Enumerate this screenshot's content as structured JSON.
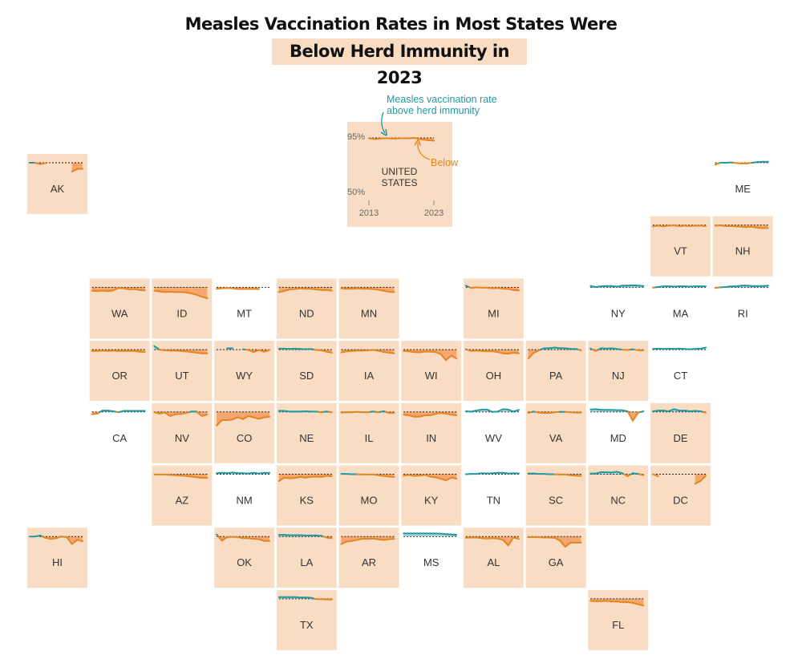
{
  "title": {
    "line1": "Measles Vaccination Rates in Most States Were",
    "line2": "Below Herd Immunity in 2023"
  },
  "colors": {
    "above": "#21999e",
    "below": "#e5851f",
    "below_fill": "#f2a36a",
    "above_fill": "#a9d7d6",
    "tile_below": "#f9dcc4",
    "threshold": "#222222"
  },
  "chart_data": {
    "type": "line",
    "title": "Measles Vaccination Rates in Most States Were Below Herd Immunity in 2023",
    "x": [
      2013,
      2014,
      2015,
      2016,
      2017,
      2018,
      2019,
      2020,
      2021,
      2022,
      2023
    ],
    "threshold": 95,
    "ylim": [
      50,
      100
    ],
    "legend": {
      "above_label": "Measles vaccination rate above herd immunity",
      "below_label": "Below"
    },
    "national": {
      "label_line1": "UNITED",
      "label_line2": "STATES",
      "y_tick_top": "95%",
      "y_tick_bottom": "50%",
      "x_tick_start": "2013",
      "x_tick_end": "2023",
      "values": [
        94.7,
        94.0,
        94.6,
        94.7,
        94.3,
        94.7,
        94.7,
        95.0,
        93.9,
        93.1,
        92.7
      ]
    },
    "states": [
      {
        "abbr": "AK",
        "col": 0,
        "row": 0,
        "below2023": true,
        "values": [
          95.0,
          95.0,
          93.0,
          94.5,
          null,
          null,
          null,
          null,
          82.0,
          86.0,
          86.0
        ]
      },
      {
        "abbr": "ME",
        "col": 11,
        "row": 0,
        "below2023": false,
        "values": [
          92.0,
          95.0,
          95.0,
          95.5,
          94.5,
          94.0,
          94.0,
          95.0,
          96.0,
          96.5,
          96.5
        ]
      },
      {
        "abbr": "VT",
        "col": 10,
        "row": 1,
        "below2023": true,
        "values": [
          93.0,
          94.0,
          93.0,
          94.0,
          94.5,
          93.5,
          94.0,
          93.5,
          94.0,
          94.0,
          93.5
        ]
      },
      {
        "abbr": "NH",
        "col": 11,
        "row": 1,
        "below2023": true,
        "values": [
          94.0,
          94.5,
          93.5,
          93.5,
          93.0,
          92.5,
          92.0,
          92.5,
          91.0,
          90.5,
          90.5
        ]
      },
      {
        "abbr": "WA",
        "col": 1,
        "row": 2,
        "below2023": true,
        "values": [
          90.0,
          89.5,
          90.0,
          89.5,
          90.5,
          94.0,
          93.5,
          92.0,
          92.5,
          91.0,
          90.5
        ]
      },
      {
        "abbr": "ID",
        "col": 2,
        "row": 2,
        "below2023": true,
        "values": [
          90.0,
          89.0,
          88.0,
          88.5,
          88.0,
          88.0,
          87.5,
          86.0,
          84.0,
          81.0,
          79.0
        ]
      },
      {
        "abbr": "MT",
        "col": 3,
        "row": 2,
        "below2023": false,
        "values": [
          93.0,
          93.5,
          94.0,
          93.5,
          92.5,
          92.5,
          92.5,
          92.5,
          92.5,
          null,
          null
        ]
      },
      {
        "abbr": "ND",
        "col": 4,
        "row": 2,
        "below2023": true,
        "values": [
          88.0,
          89.5,
          92.0,
          92.5,
          93.5,
          93.0,
          93.0,
          92.0,
          91.0,
          91.0,
          90.0
        ]
      },
      {
        "abbr": "MN",
        "col": 5,
        "row": 2,
        "below2023": true,
        "values": [
          93.5,
          93.0,
          93.0,
          93.5,
          93.0,
          93.0,
          92.5,
          91.5,
          90.0,
          88.5,
          88.0
        ]
      },
      {
        "abbr": "MI",
        "col": 7,
        "row": 2,
        "below2023": true,
        "values": [
          97.5,
          94.0,
          95.0,
          94.5,
          94.5,
          93.5,
          94.0,
          93.0,
          92.5,
          91.0,
          90.5
        ]
      },
      {
        "abbr": "NY",
        "col": 9,
        "row": 2,
        "below2023": false,
        "values": [
          97.0,
          95.5,
          96.5,
          97.0,
          97.0,
          96.0,
          97.5,
          97.5,
          98.0,
          97.5,
          97.0
        ]
      },
      {
        "abbr": "MA",
        "col": 10,
        "row": 2,
        "below2023": false,
        "values": [
          94.5,
          95.5,
          96.5,
          96.5,
          96.0,
          96.5,
          96.5,
          96.0,
          96.5,
          96.5,
          96.5
        ]
      },
      {
        "abbr": "RI",
        "col": 11,
        "row": 2,
        "below2023": false,
        "values": [
          94.0,
          95.0,
          95.5,
          96.5,
          96.5,
          97.5,
          97.5,
          97.0,
          97.0,
          97.0,
          97.5
        ]
      },
      {
        "abbr": "OR",
        "col": 1,
        "row": 3,
        "below2023": true,
        "values": [
          93.0,
          93.0,
          93.5,
          93.0,
          93.5,
          93.0,
          93.0,
          93.0,
          93.0,
          92.0,
          91.5
        ]
      },
      {
        "abbr": "UT",
        "col": 2,
        "row": 3,
        "below2023": true,
        "values": [
          100.0,
          95.0,
          94.0,
          93.5,
          93.5,
          93.0,
          92.5,
          91.5,
          90.5,
          89.5,
          89.5
        ]
      },
      {
        "abbr": "WY",
        "col": 3,
        "row": 3,
        "below2023": true,
        "values": [
          null,
          null,
          97.0,
          97.0,
          null,
          95.5,
          94.5,
          91.5,
          94.5,
          92.0,
          94.5
        ]
      },
      {
        "abbr": "SD",
        "col": 4,
        "row": 3,
        "below2023": true,
        "values": [
          96.5,
          96.5,
          96.0,
          96.5,
          96.0,
          95.5,
          96.0,
          94.5,
          94.0,
          92.0,
          90.5
        ]
      },
      {
        "abbr": "IA",
        "col": 5,
        "row": 3,
        "below2023": true,
        "values": [
          91.0,
          92.5,
          93.0,
          93.5,
          93.5,
          94.0,
          94.5,
          93.5,
          91.5,
          90.5,
          89.5
        ]
      },
      {
        "abbr": "WI",
        "col": 6,
        "row": 3,
        "below2023": true,
        "values": [
          93.0,
          92.5,
          91.5,
          91.0,
          92.0,
          92.0,
          91.5,
          88.5,
          79.5,
          86.0,
          82.0
        ]
      },
      {
        "abbr": "OH",
        "col": 7,
        "row": 3,
        "below2023": true,
        "values": [
          95.5,
          93.0,
          93.5,
          93.0,
          92.5,
          92.5,
          91.5,
          89.5,
          89.0,
          90.5,
          89.5
        ]
      },
      {
        "abbr": "PA",
        "col": 8,
        "row": 3,
        "below2023": true,
        "values": [
          82.0,
          90.0,
          94.0,
          97.0,
          97.0,
          98.0,
          97.0,
          97.0,
          96.0,
          96.0,
          94.0
        ]
      },
      {
        "abbr": "NJ",
        "col": 9,
        "row": 3,
        "below2023": true,
        "values": [
          96.5,
          93.0,
          97.0,
          96.5,
          97.0,
          96.0,
          95.0,
          94.5,
          95.5,
          94.0,
          94.0
        ]
      },
      {
        "abbr": "CT",
        "col": 10,
        "row": 3,
        "below2023": false,
        "values": [
          96.0,
          96.5,
          96.0,
          96.5,
          96.0,
          96.5,
          96.0,
          95.5,
          96.0,
          96.5,
          98.0
        ]
      },
      {
        "abbr": "CA",
        "col": 1,
        "row": 4,
        "below2023": false,
        "values": [
          91.5,
          92.5,
          97.0,
          97.0,
          96.0,
          94.5,
          96.5,
          96.5,
          96.5,
          96.5,
          96.5
        ]
      },
      {
        "abbr": "NV",
        "col": 2,
        "row": 4,
        "below2023": true,
        "values": [
          94.5,
          92.5,
          94.0,
          89.0,
          91.5,
          92.0,
          93.5,
          95.5,
          95.5,
          89.0,
          91.0
        ]
      },
      {
        "abbr": "CO",
        "col": 3,
        "row": 4,
        "below2023": true,
        "values": [
          75.0,
          83.0,
          83.0,
          84.0,
          87.0,
          84.5,
          89.0,
          87.0,
          85.0,
          87.0,
          88.0
        ]
      },
      {
        "abbr": "NE",
        "col": 4,
        "row": 4,
        "below2023": true,
        "values": [
          96.5,
          96.5,
          95.5,
          95.5,
          95.5,
          96.0,
          95.5,
          95.5,
          94.5,
          95.5,
          94.5
        ]
      },
      {
        "abbr": "IL",
        "col": 5,
        "row": 4,
        "below2023": true,
        "values": [
          94.0,
          94.5,
          94.5,
          95.0,
          94.5,
          94.5,
          95.5,
          94.5,
          96.0,
          93.5,
          93.5
        ]
      },
      {
        "abbr": "IN",
        "col": 6,
        "row": 4,
        "below2023": true,
        "values": [
          91.0,
          90.0,
          88.0,
          88.0,
          90.0,
          90.0,
          92.0,
          93.5,
          92.5,
          91.0,
          90.0
        ]
      },
      {
        "abbr": "WV",
        "col": 7,
        "row": 4,
        "below2023": false,
        "values": [
          96.0,
          95.5,
          97.0,
          98.5,
          98.5,
          95.0,
          95.5,
          99.0,
          98.5,
          95.5,
          98.0
        ]
      },
      {
        "abbr": "VA",
        "col": 8,
        "row": 4,
        "below2023": true,
        "values": [
          93.5,
          95.5,
          94.0,
          93.5,
          93.5,
          94.5,
          95.0,
          95.0,
          94.5,
          94.0,
          94.0
        ]
      },
      {
        "abbr": "MD",
        "col": 9,
        "row": 4,
        "below2023": false,
        "values": [
          98.5,
          99.0,
          98.0,
          98.0,
          98.0,
          97.5,
          97.5,
          96.0,
          82.0,
          94.0,
          96.0
        ]
      },
      {
        "abbr": "DE",
        "col": 10,
        "row": 4,
        "below2023": true,
        "values": [
          96.0,
          97.0,
          97.0,
          96.0,
          99.0,
          97.0,
          97.0,
          96.0,
          96.5,
          96.0,
          94.0
        ]
      },
      {
        "abbr": "AZ",
        "col": 2,
        "row": 5,
        "below2023": true,
        "values": [
          94.5,
          94.5,
          94.5,
          94.0,
          93.5,
          93.0,
          92.5,
          91.5,
          90.5,
          89.5,
          89.5
        ]
      },
      {
        "abbr": "NM",
        "col": 3,
        "row": 5,
        "below2023": false,
        "values": [
          96.5,
          97.0,
          96.5,
          97.5,
          96.5,
          96.5,
          96.0,
          97.0,
          96.0,
          97.0,
          97.0
        ]
      },
      {
        "abbr": "KS",
        "col": 4,
        "row": 5,
        "below2023": true,
        "values": [
          85.0,
          90.0,
          89.0,
          89.5,
          91.0,
          90.0,
          91.0,
          91.5,
          91.0,
          92.5,
          92.0
        ]
      },
      {
        "abbr": "MO",
        "col": 5,
        "row": 5,
        "below2023": true,
        "values": [
          95.5,
          95.5,
          95.0,
          95.0,
          94.5,
          94.5,
          94.5,
          93.5,
          92.5,
          91.5,
          91.0
        ]
      },
      {
        "abbr": "KY",
        "col": 6,
        "row": 5,
        "below2023": true,
        "values": [
          93.0,
          94.0,
          92.5,
          93.0,
          94.0,
          91.5,
          90.5,
          88.5,
          86.0,
          90.0,
          88.5
        ]
      },
      {
        "abbr": "TN",
        "col": 7,
        "row": 5,
        "below2023": false,
        "values": [
          95.0,
          95.5,
          95.5,
          96.5,
          96.0,
          96.5,
          97.0,
          97.0,
          96.0,
          96.5,
          96.0
        ]
      },
      {
        "abbr": "SC",
        "col": 8,
        "row": 5,
        "below2023": true,
        "values": [
          96.0,
          96.0,
          95.5,
          95.5,
          95.0,
          95.0,
          94.5,
          94.5,
          93.5,
          93.0,
          92.5
        ]
      },
      {
        "abbr": "NC",
        "col": 9,
        "row": 5,
        "below2023": true,
        "values": [
          96.0,
          96.0,
          98.0,
          98.0,
          97.5,
          98.5,
          96.5,
          92.0,
          96.5,
          95.5,
          93.5
        ]
      },
      {
        "abbr": "DC",
        "col": 10,
        "row": 5,
        "below2023": true,
        "values": [
          95.0,
          92.0,
          null,
          null,
          null,
          null,
          null,
          null,
          81.0,
          85.0,
          93.0
        ]
      },
      {
        "abbr": "HI",
        "col": 0,
        "row": 6,
        "below2023": true,
        "values": [
          95.0,
          95.0,
          96.5,
          93.0,
          91.5,
          92.5,
          95.0,
          94.0,
          84.0,
          90.0,
          88.0
        ]
      },
      {
        "abbr": "OK",
        "col": 3,
        "row": 6,
        "below2023": true,
        "values": [
          98.0,
          89.0,
          94.0,
          94.5,
          94.0,
          92.5,
          92.5,
          91.5,
          91.0,
          88.5,
          88.5
        ]
      },
      {
        "abbr": "LA",
        "col": 4,
        "row": 6,
        "below2023": true,
        "values": [
          97.5,
          97.5,
          97.0,
          97.0,
          97.0,
          96.5,
          96.5,
          96.5,
          96.0,
          93.5,
          92.5
        ]
      },
      {
        "abbr": "AR",
        "col": 5,
        "row": 6,
        "below2023": true,
        "values": [
          84.0,
          87.5,
          88.5,
          90.0,
          91.5,
          91.5,
          92.0,
          91.0,
          90.0,
          91.0,
          91.5
        ]
      },
      {
        "abbr": "MS",
        "col": 6,
        "row": 6,
        "below2023": false,
        "values": [
          99.5,
          99.5,
          99.5,
          99.5,
          99.5,
          99.5,
          99.3,
          99.2,
          98.5,
          98.0,
          97.5
        ]
      },
      {
        "abbr": "AL",
        "col": 7,
        "row": 6,
        "below2023": true,
        "values": [
          93.0,
          93.5,
          93.5,
          92.5,
          92.0,
          92.5,
          92.0,
          90.0,
          82.0,
          93.5,
          91.5
        ]
      },
      {
        "abbr": "GA",
        "col": 8,
        "row": 6,
        "below2023": true,
        "values": [
          94.0,
          94.0,
          94.0,
          93.5,
          93.5,
          93.0,
          89.0,
          80.0,
          86.0,
          86.0,
          86.0
        ]
      },
      {
        "abbr": "TX",
        "col": 4,
        "row": 7,
        "below2023": true,
        "values": [
          97.5,
          97.5,
          97.5,
          97.5,
          97.0,
          97.0,
          96.5,
          94.5,
          94.5,
          94.0,
          94.0
        ]
      },
      {
        "abbr": "FL",
        "col": 9,
        "row": 7,
        "below2023": true,
        "values": [
          92.0,
          91.5,
          91.5,
          92.0,
          91.0,
          91.0,
          90.0,
          90.0,
          89.0,
          87.0,
          85.0
        ]
      }
    ]
  }
}
